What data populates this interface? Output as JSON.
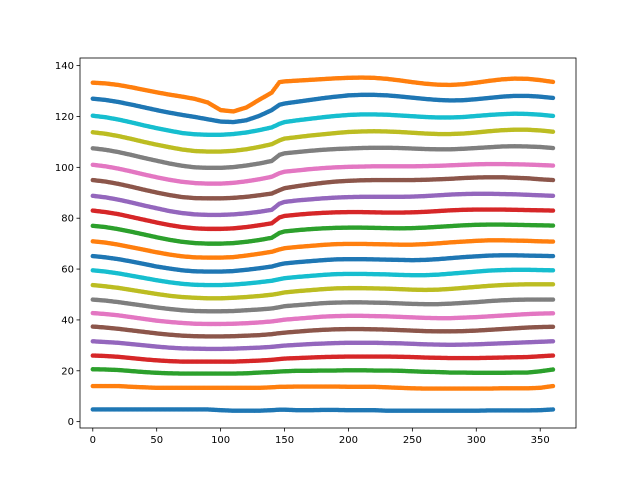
{
  "chart_data": {
    "type": "scatter",
    "title": "",
    "xlabel": "",
    "ylabel": "",
    "xlim": [
      -10,
      378
    ],
    "ylim": [
      -2.5,
      143
    ],
    "grid": false,
    "legend": "none",
    "x_ticks": [
      "0",
      "50",
      "100",
      "150",
      "200",
      "250",
      "300",
      "350"
    ],
    "y_ticks": [
      "0",
      "20",
      "40",
      "60",
      "80",
      "100",
      "120",
      "140"
    ],
    "x_tick_values": [
      0,
      50,
      100,
      150,
      200,
      250,
      300,
      350
    ],
    "y_tick_values": [
      0,
      20,
      40,
      60,
      80,
      100,
      120,
      140
    ],
    "x": [
      0,
      10,
      20,
      30,
      40,
      50,
      60,
      70,
      80,
      90,
      100,
      110,
      120,
      130,
      140,
      146,
      150,
      160,
      170,
      180,
      190,
      200,
      210,
      220,
      230,
      240,
      250,
      260,
      270,
      280,
      290,
      300,
      310,
      320,
      330,
      340,
      350,
      360
    ],
    "series": [
      {
        "color": "#1f77b4",
        "values": [
          4.8,
          4.8,
          4.8,
          4.8,
          4.8,
          4.8,
          4.8,
          4.8,
          4.8,
          4.8,
          4.5,
          4.3,
          4.3,
          4.3,
          4.5,
          4.7,
          4.7,
          4.5,
          4.5,
          4.6,
          4.6,
          4.5,
          4.5,
          4.5,
          4.3,
          4.3,
          4.3,
          4.3,
          4.3,
          4.3,
          4.3,
          4.3,
          4.4,
          4.4,
          4.4,
          4.4,
          4.5,
          4.8
        ]
      },
      {
        "color": "#ff7f0e",
        "values": [
          14.0,
          14.0,
          14.0,
          13.7,
          13.5,
          13.3,
          13.3,
          13.3,
          13.3,
          13.3,
          13.3,
          13.3,
          13.3,
          13.3,
          13.5,
          13.7,
          13.7,
          13.8,
          13.8,
          13.8,
          13.8,
          13.7,
          13.7,
          13.7,
          13.5,
          13.3,
          13.1,
          13.0,
          13.0,
          13.0,
          13.0,
          13.0,
          13.0,
          13.1,
          13.1,
          13.1,
          13.3,
          14.0
        ]
      },
      {
        "color": "#2ca02c",
        "values": [
          20.6,
          20.5,
          20.3,
          19.9,
          19.5,
          19.2,
          19.0,
          18.9,
          18.9,
          18.9,
          18.9,
          18.9,
          19.0,
          19.3,
          19.5,
          19.7,
          19.8,
          20.0,
          20.0,
          20.1,
          20.1,
          20.2,
          20.2,
          20.1,
          20.1,
          20.0,
          19.8,
          19.6,
          19.5,
          19.3,
          19.3,
          19.2,
          19.2,
          19.2,
          19.3,
          19.3,
          19.8,
          20.5
        ]
      },
      {
        "color": "#d62728",
        "values": [
          26.0,
          25.8,
          25.5,
          25.0,
          24.5,
          24.1,
          23.8,
          23.6,
          23.6,
          23.6,
          23.6,
          23.6,
          23.8,
          24.0,
          24.3,
          24.6,
          24.8,
          25.0,
          25.2,
          25.4,
          25.5,
          25.6,
          25.6,
          25.6,
          25.6,
          25.5,
          25.4,
          25.2,
          25.1,
          25.0,
          25.0,
          25.0,
          25.1,
          25.2,
          25.3,
          25.4,
          25.7,
          26.0
        ]
      },
      {
        "color": "#9467bd",
        "values": [
          31.6,
          31.3,
          31.0,
          30.5,
          30.0,
          29.5,
          29.1,
          28.8,
          28.7,
          28.6,
          28.6,
          28.7,
          28.9,
          29.1,
          29.4,
          29.7,
          29.9,
          30.2,
          30.5,
          30.7,
          30.9,
          31.0,
          31.0,
          31.0,
          30.9,
          30.8,
          30.6,
          30.4,
          30.3,
          30.2,
          30.3,
          30.4,
          30.6,
          30.8,
          31.0,
          31.2,
          31.4,
          31.6
        ]
      },
      {
        "color": "#8c564b",
        "values": [
          37.4,
          37.0,
          36.5,
          35.9,
          35.3,
          34.7,
          34.2,
          33.8,
          33.6,
          33.5,
          33.5,
          33.6,
          33.8,
          34.0,
          34.4,
          34.8,
          35.0,
          35.4,
          35.8,
          36.1,
          36.3,
          36.4,
          36.4,
          36.3,
          36.2,
          36.0,
          35.8,
          35.6,
          35.5,
          35.5,
          35.6,
          35.8,
          36.1,
          36.4,
          36.7,
          37.0,
          37.2,
          37.3
        ]
      },
      {
        "color": "#e377c2",
        "values": [
          42.7,
          42.3,
          41.8,
          41.1,
          40.4,
          39.7,
          39.2,
          38.8,
          38.5,
          38.4,
          38.4,
          38.5,
          38.7,
          39.0,
          39.4,
          39.8,
          40.1,
          40.5,
          40.9,
          41.3,
          41.5,
          41.6,
          41.6,
          41.5,
          41.4,
          41.2,
          41.0,
          40.8,
          40.7,
          40.7,
          40.9,
          41.1,
          41.4,
          41.7,
          42.0,
          42.3,
          42.5,
          42.6
        ]
      },
      {
        "color": "#7f7f7f",
        "values": [
          48.0,
          47.6,
          47.0,
          46.3,
          45.6,
          44.9,
          44.3,
          43.8,
          43.5,
          43.4,
          43.4,
          43.5,
          43.8,
          44.1,
          44.5,
          45.0,
          45.4,
          45.8,
          46.2,
          46.6,
          46.8,
          46.9,
          46.9,
          46.8,
          46.7,
          46.5,
          46.3,
          46.2,
          46.2,
          46.4,
          46.7,
          47.0,
          47.4,
          47.7,
          47.9,
          48.0,
          48.0,
          48.0
        ]
      },
      {
        "color": "#bcbd22",
        "values": [
          53.7,
          53.2,
          52.6,
          51.8,
          51.0,
          50.2,
          49.5,
          49.0,
          48.7,
          48.5,
          48.5,
          48.7,
          49.0,
          49.4,
          49.9,
          50.4,
          50.8,
          51.3,
          51.7,
          52.1,
          52.4,
          52.5,
          52.5,
          52.4,
          52.3,
          52.1,
          51.9,
          51.8,
          51.9,
          52.2,
          52.6,
          53.0,
          53.4,
          53.7,
          53.9,
          54.0,
          54.0,
          54.0
        ]
      },
      {
        "color": "#17becf",
        "values": [
          59.5,
          59.0,
          58.3,
          57.4,
          56.5,
          55.6,
          54.8,
          54.2,
          53.8,
          53.7,
          53.7,
          53.9,
          54.3,
          54.8,
          55.4,
          56.0,
          56.4,
          56.9,
          57.3,
          57.7,
          58.0,
          58.1,
          58.1,
          58.0,
          57.9,
          57.7,
          57.6,
          57.6,
          57.8,
          58.2,
          58.6,
          59.0,
          59.4,
          59.6,
          59.7,
          59.7,
          59.6,
          59.5
        ]
      },
      {
        "color": "#1f77b4",
        "values": [
          65.1,
          64.6,
          63.9,
          63.0,
          62.0,
          61.0,
          60.2,
          59.5,
          59.1,
          59.0,
          59.0,
          59.2,
          59.7,
          60.3,
          61.0,
          61.8,
          62.2,
          62.7,
          63.1,
          63.5,
          63.8,
          63.9,
          63.9,
          63.8,
          63.7,
          63.6,
          63.5,
          63.6,
          63.9,
          64.3,
          64.7,
          65.0,
          65.3,
          65.4,
          65.4,
          65.3,
          65.2,
          65.1
        ]
      },
      {
        "color": "#ff7f0e",
        "values": [
          70.9,
          70.4,
          69.6,
          68.6,
          67.6,
          66.6,
          65.7,
          65.0,
          64.6,
          64.5,
          64.5,
          64.7,
          65.3,
          66.0,
          66.8,
          67.7,
          68.2,
          68.7,
          69.1,
          69.5,
          69.8,
          69.9,
          69.9,
          69.8,
          69.7,
          69.6,
          69.6,
          69.8,
          70.1,
          70.5,
          70.8,
          71.1,
          71.3,
          71.3,
          71.2,
          71.1,
          70.9,
          70.8
        ]
      },
      {
        "color": "#2ca02c",
        "values": [
          77.0,
          76.5,
          75.7,
          74.7,
          73.6,
          72.5,
          71.5,
          70.7,
          70.2,
          70.0,
          70.0,
          70.2,
          70.7,
          71.4,
          72.3,
          74.2,
          74.8,
          75.3,
          75.7,
          76.0,
          76.2,
          76.3,
          76.3,
          76.2,
          76.1,
          76.0,
          76.1,
          76.3,
          76.6,
          76.9,
          77.2,
          77.4,
          77.5,
          77.5,
          77.4,
          77.3,
          77.2,
          77.1
        ]
      },
      {
        "color": "#d62728",
        "values": [
          83.0,
          82.4,
          81.6,
          80.5,
          79.4,
          78.3,
          77.3,
          76.5,
          76.0,
          75.8,
          75.8,
          76.0,
          76.5,
          77.2,
          78.0,
          80.3,
          80.9,
          81.4,
          81.8,
          82.1,
          82.3,
          82.4,
          82.4,
          82.3,
          82.2,
          82.2,
          82.3,
          82.5,
          82.8,
          83.1,
          83.3,
          83.4,
          83.4,
          83.4,
          83.3,
          83.2,
          83.1,
          83.0
        ]
      },
      {
        "color": "#9467bd",
        "values": [
          88.8,
          88.2,
          87.3,
          86.2,
          85.0,
          83.9,
          82.8,
          82.0,
          81.5,
          81.3,
          81.3,
          81.5,
          81.9,
          82.5,
          83.3,
          85.7,
          86.4,
          87.0,
          87.4,
          87.8,
          88.1,
          88.3,
          88.4,
          88.4,
          88.4,
          88.4,
          88.5,
          88.7,
          89.0,
          89.3,
          89.5,
          89.6,
          89.6,
          89.5,
          89.4,
          89.2,
          89.0,
          88.8
        ]
      },
      {
        "color": "#8c564b",
        "values": [
          95.0,
          94.4,
          93.5,
          92.4,
          91.2,
          90.1,
          89.1,
          88.3,
          87.9,
          87.8,
          87.8,
          88.0,
          88.4,
          89.0,
          89.7,
          91.0,
          91.8,
          92.6,
          93.3,
          93.9,
          94.4,
          94.7,
          94.9,
          95.0,
          95.0,
          95.0,
          95.0,
          95.1,
          95.3,
          95.5,
          95.8,
          96.0,
          96.1,
          96.1,
          95.9,
          95.7,
          95.3,
          95.0
        ]
      },
      {
        "color": "#e377c2",
        "values": [
          101.0,
          100.4,
          99.5,
          98.4,
          97.2,
          96.1,
          95.1,
          94.3,
          93.8,
          93.6,
          93.6,
          93.9,
          94.5,
          95.3,
          96.3,
          97.7,
          98.3,
          98.8,
          99.3,
          99.7,
          100.0,
          100.2,
          100.3,
          100.4,
          100.4,
          100.4,
          100.4,
          100.5,
          100.6,
          100.8,
          101.0,
          101.2,
          101.3,
          101.3,
          101.2,
          101.1,
          100.9,
          100.7
        ]
      },
      {
        "color": "#7f7f7f",
        "values": [
          107.5,
          106.9,
          106.0,
          104.9,
          103.7,
          102.6,
          101.5,
          100.6,
          100.0,
          99.8,
          99.8,
          100.1,
          100.7,
          101.5,
          102.5,
          104.9,
          105.5,
          106.0,
          106.5,
          106.9,
          107.2,
          107.4,
          107.6,
          107.7,
          107.7,
          107.6,
          107.4,
          107.2,
          107.1,
          107.1,
          107.3,
          107.6,
          107.9,
          108.2,
          108.3,
          108.2,
          108.0,
          107.6
        ]
      },
      {
        "color": "#bcbd22",
        "values": [
          113.8,
          113.2,
          112.3,
          111.2,
          110.0,
          108.9,
          107.9,
          107.0,
          106.4,
          106.2,
          106.2,
          106.5,
          107.1,
          108.0,
          109.1,
          110.6,
          111.3,
          111.9,
          112.5,
          113.0,
          113.5,
          113.9,
          114.1,
          114.2,
          114.1,
          113.9,
          113.6,
          113.3,
          113.1,
          113.1,
          113.3,
          113.7,
          114.2,
          114.6,
          114.8,
          114.8,
          114.5,
          114.0
        ]
      },
      {
        "color": "#17becf",
        "values": [
          120.3,
          119.7,
          118.8,
          117.7,
          116.5,
          115.4,
          114.4,
          113.5,
          113.0,
          112.8,
          112.8,
          113.1,
          113.7,
          114.6,
          115.7,
          117.1,
          117.8,
          118.5,
          119.1,
          119.7,
          120.2,
          120.6,
          120.8,
          120.8,
          120.7,
          120.4,
          120.1,
          119.8,
          119.6,
          119.6,
          119.8,
          120.2,
          120.6,
          120.9,
          121.1,
          121.0,
          120.7,
          120.2
        ]
      },
      {
        "color": "#1f77b4",
        "values": [
          127.0,
          126.5,
          125.7,
          124.7,
          123.6,
          122.5,
          121.5,
          120.6,
          119.8,
          118.9,
          118.0,
          117.8,
          118.5,
          120.2,
          122.5,
          124.6,
          125.1,
          125.8,
          126.5,
          127.2,
          127.8,
          128.3,
          128.5,
          128.5,
          128.3,
          127.9,
          127.4,
          126.9,
          126.5,
          126.3,
          126.4,
          126.8,
          127.3,
          127.8,
          128.1,
          128.1,
          127.8,
          127.3
        ]
      },
      {
        "color": "#ff7f0e",
        "values": [
          133.3,
          133.0,
          132.4,
          131.5,
          130.5,
          129.5,
          128.6,
          127.8,
          126.9,
          125.5,
          122.5,
          122.0,
          123.5,
          126.5,
          129.4,
          133.5,
          133.8,
          134.1,
          134.4,
          134.7,
          135.0,
          135.2,
          135.3,
          135.2,
          134.8,
          134.2,
          133.5,
          132.9,
          132.5,
          132.4,
          132.7,
          133.3,
          134.0,
          134.6,
          134.9,
          134.8,
          134.3,
          133.6
        ]
      }
    ]
  }
}
